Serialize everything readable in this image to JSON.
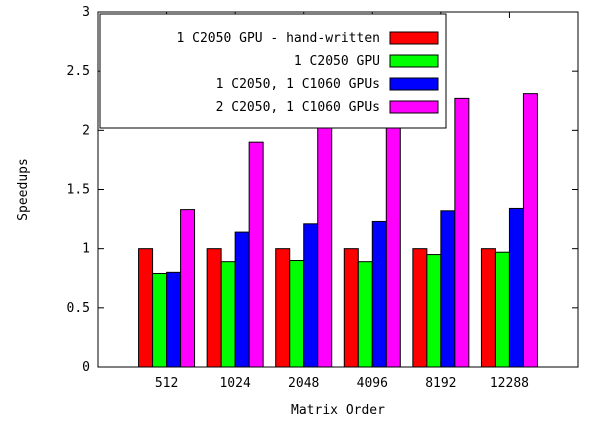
{
  "chart_data": {
    "type": "bar",
    "title": "",
    "xlabel": "Matrix Order",
    "ylabel": "Speedups",
    "categories": [
      "512",
      "1024",
      "2048",
      "4096",
      "8192",
      "12288"
    ],
    "ylim": [
      0,
      3
    ],
    "yticks": [
      0,
      0.5,
      1,
      1.5,
      2,
      2.5,
      3
    ],
    "ytick_labels": [
      "0",
      "0.5",
      "1",
      "1.5",
      "2",
      "2.5",
      "3"
    ],
    "grid": false,
    "legend_position": "top-left",
    "series": [
      {
        "name": "1 C2050 GPU - hand-written",
        "color": "#ff0000",
        "values": [
          1.0,
          1.0,
          1.0,
          1.0,
          1.0,
          1.0
        ]
      },
      {
        "name": "1 C2050 GPU",
        "color": "#00ff00",
        "values": [
          0.79,
          0.89,
          0.9,
          0.89,
          0.95,
          0.97
        ]
      },
      {
        "name": "1 C2050, 1 C1060 GPUs",
        "color": "#0000ff",
        "values": [
          0.8,
          1.14,
          1.21,
          1.23,
          1.32,
          1.34
        ]
      },
      {
        "name": "2 C2050, 1 C1060 GPUs",
        "color": "#ff00ff",
        "values": [
          1.33,
          1.9,
          2.08,
          2.1,
          2.27,
          2.31
        ]
      }
    ]
  }
}
